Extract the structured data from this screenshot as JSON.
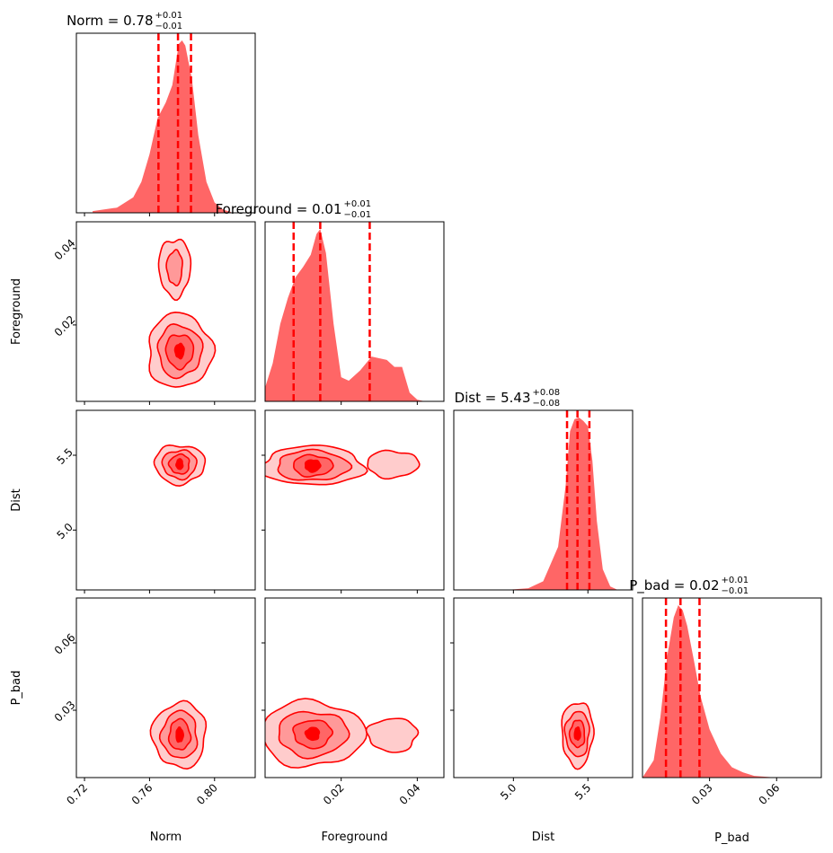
{
  "chart_data": {
    "type": "corner",
    "parameters": [
      "Norm",
      "Foreground",
      "Dist",
      "P_bad"
    ],
    "color": "#ff0000",
    "fill_color": "#ff6666",
    "titles": [
      {
        "param": "Norm",
        "label": "Norm = 0.78",
        "sup": "+0.01",
        "sub": "−0.01"
      },
      {
        "param": "Foreground",
        "label": "Foreground = 0.01",
        "sup": "+0.01",
        "sub": "−0.01"
      },
      {
        "param": "Dist",
        "label": "Dist = 5.43",
        "sup": "+0.08",
        "sub": "−0.08"
      },
      {
        "param": "P_bad",
        "label": "P_bad = 0.02",
        "sup": "+0.01",
        "sub": "−0.01"
      }
    ],
    "ranges": {
      "Norm": [
        0.715,
        0.825
      ],
      "Foreground": [
        0.0,
        0.047
      ],
      "Dist": [
        4.6,
        5.8
      ],
      "P_bad": [
        0.0,
        0.08
      ]
    },
    "ticks": {
      "Norm": [
        0.72,
        0.76,
        0.8
      ],
      "Foreground": [
        0.02,
        0.04
      ],
      "Dist": [
        5.0,
        5.5
      ],
      "P_bad": [
        0.03,
        0.06
      ]
    },
    "tick_labels": {
      "Norm": [
        "0.72",
        "0.76",
        "0.80"
      ],
      "Foreground": [
        "0.02",
        "0.04"
      ],
      "Dist": [
        "5.0",
        "5.5"
      ],
      "P_bad": [
        "0.03",
        "0.06"
      ]
    },
    "quantiles": {
      "Norm": [
        0.7655,
        0.7775,
        0.7855
      ],
      "Foreground": [
        0.0075,
        0.0145,
        0.0275
      ],
      "Dist": [
        5.36,
        5.43,
        5.51
      ],
      "P_bad": [
        0.0105,
        0.017,
        0.0255
      ]
    },
    "marginals": {
      "Norm": {
        "x": [
          0.725,
          0.74,
          0.75,
          0.755,
          0.76,
          0.765,
          0.77,
          0.774,
          0.778,
          0.78,
          0.782,
          0.786,
          0.79,
          0.795,
          0.8,
          0.805,
          0.81
        ],
        "density": [
          0.01,
          0.03,
          0.09,
          0.18,
          0.34,
          0.55,
          0.64,
          0.74,
          0.98,
          1.0,
          0.97,
          0.78,
          0.45,
          0.18,
          0.06,
          0.02,
          0.005
        ]
      },
      "Foreground": {
        "x": [
          0.0,
          0.002,
          0.004,
          0.006,
          0.008,
          0.01,
          0.012,
          0.0135,
          0.0145,
          0.016,
          0.018,
          0.02,
          0.022,
          0.025,
          0.028,
          0.03,
          0.032,
          0.034,
          0.036,
          0.038,
          0.04,
          0.042
        ],
        "density": [
          0.08,
          0.22,
          0.45,
          0.6,
          0.72,
          0.78,
          0.85,
          0.97,
          1.0,
          0.86,
          0.45,
          0.14,
          0.12,
          0.18,
          0.26,
          0.25,
          0.24,
          0.2,
          0.2,
          0.05,
          0.01,
          0.0
        ]
      },
      "Dist": {
        "x": [
          4.95,
          5.1,
          5.2,
          5.3,
          5.35,
          5.38,
          5.41,
          5.44,
          5.47,
          5.5,
          5.53,
          5.56,
          5.6,
          5.65,
          5.7
        ],
        "density": [
          0.0,
          0.01,
          0.05,
          0.25,
          0.6,
          0.92,
          0.99,
          1.0,
          0.98,
          0.95,
          0.75,
          0.4,
          0.12,
          0.02,
          0.0
        ]
      },
      "P_bad": {
        "x": [
          0.0,
          0.005,
          0.008,
          0.011,
          0.014,
          0.016,
          0.018,
          0.02,
          0.023,
          0.026,
          0.03,
          0.035,
          0.04,
          0.045,
          0.05,
          0.06
        ],
        "density": [
          0.0,
          0.1,
          0.35,
          0.7,
          0.93,
          1.0,
          0.97,
          0.88,
          0.68,
          0.47,
          0.28,
          0.14,
          0.06,
          0.03,
          0.01,
          0.0
        ]
      }
    },
    "pairs": [
      {
        "x": "Norm",
        "y": "Foreground",
        "blobs": [
          {
            "cx": 0.7785,
            "cy": 0.0132,
            "r1x": 0.0198,
            "r1y": 0.0097,
            "r2x": 0.0135,
            "r2y": 0.0068,
            "r3x": 0.0085,
            "r3y": 0.0044,
            "r4x": 0.0028,
            "r4y": 0.0019
          },
          {
            "cx": 0.7755,
            "cy": 0.035,
            "r1x": 0.0098,
            "r1y": 0.0076,
            "r2x": 0.0048,
            "r2y": 0.0045,
            "r3x": 0,
            "r3y": 0,
            "r4x": 0,
            "r4y": 0
          }
        ]
      },
      {
        "x": "Norm",
        "y": "Dist",
        "blobs": [
          {
            "cx": 0.7785,
            "cy": 5.44,
            "r1x": 0.0155,
            "r1y": 0.13,
            "r2x": 0.0105,
            "r2y": 0.095,
            "r3x": 0.0062,
            "r3y": 0.065,
            "r4x": 0.002,
            "r4y": 0.035
          }
        ]
      },
      {
        "x": "Norm",
        "y": "P_bad",
        "blobs": [
          {
            "cx": 0.7785,
            "cy": 0.019,
            "r1x": 0.0165,
            "r1y": 0.0145,
            "r2x": 0.011,
            "r2y": 0.0105,
            "r3x": 0.0065,
            "r3y": 0.0068,
            "r4x": 0.0022,
            "r4y": 0.0032
          }
        ]
      },
      {
        "x": "Foreground",
        "y": "Dist",
        "blobs": [
          {
            "cx": 0.0125,
            "cy": 5.43,
            "r1x": 0.0135,
            "r1y": 0.13,
            "r2x": 0.0095,
            "r2y": 0.1,
            "r3x": 0.0052,
            "r3y": 0.07,
            "r4x": 0.002,
            "r4y": 0.04
          },
          {
            "cx": 0.0335,
            "cy": 5.44,
            "r1x": 0.0068,
            "r1y": 0.09,
            "r2x": 0,
            "r2y": 0,
            "r3x": 0,
            "r3y": 0,
            "r4x": 0,
            "r4y": 0
          }
        ]
      },
      {
        "x": "Foreground",
        "y": "P_bad",
        "blobs": [
          {
            "cx": 0.0125,
            "cy": 0.0195,
            "r1x": 0.0135,
            "r1y": 0.0145,
            "r2x": 0.0092,
            "r2y": 0.01,
            "r3x": 0.005,
            "r3y": 0.0062,
            "r4x": 0.0018,
            "r4y": 0.0028
          },
          {
            "cx": 0.0335,
            "cy": 0.019,
            "r1x": 0.0065,
            "r1y": 0.0075,
            "r2x": 0,
            "r2y": 0,
            "r3x": 0,
            "r3y": 0,
            "r4x": 0,
            "r4y": 0
          }
        ]
      },
      {
        "x": "Dist",
        "y": "P_bad",
        "blobs": [
          {
            "cx": 5.43,
            "cy": 0.0195,
            "r1x": 0.105,
            "r1y": 0.0145,
            "r2x": 0.08,
            "r2y": 0.01,
            "r3x": 0.05,
            "r3y": 0.006,
            "r4x": 0.02,
            "r4y": 0.0028
          }
        ]
      }
    ],
    "xlabels": [
      "Norm",
      "Foreground",
      "Dist",
      "P_bad"
    ],
    "ylabels": [
      "Foreground",
      "Dist",
      "P_bad"
    ]
  }
}
